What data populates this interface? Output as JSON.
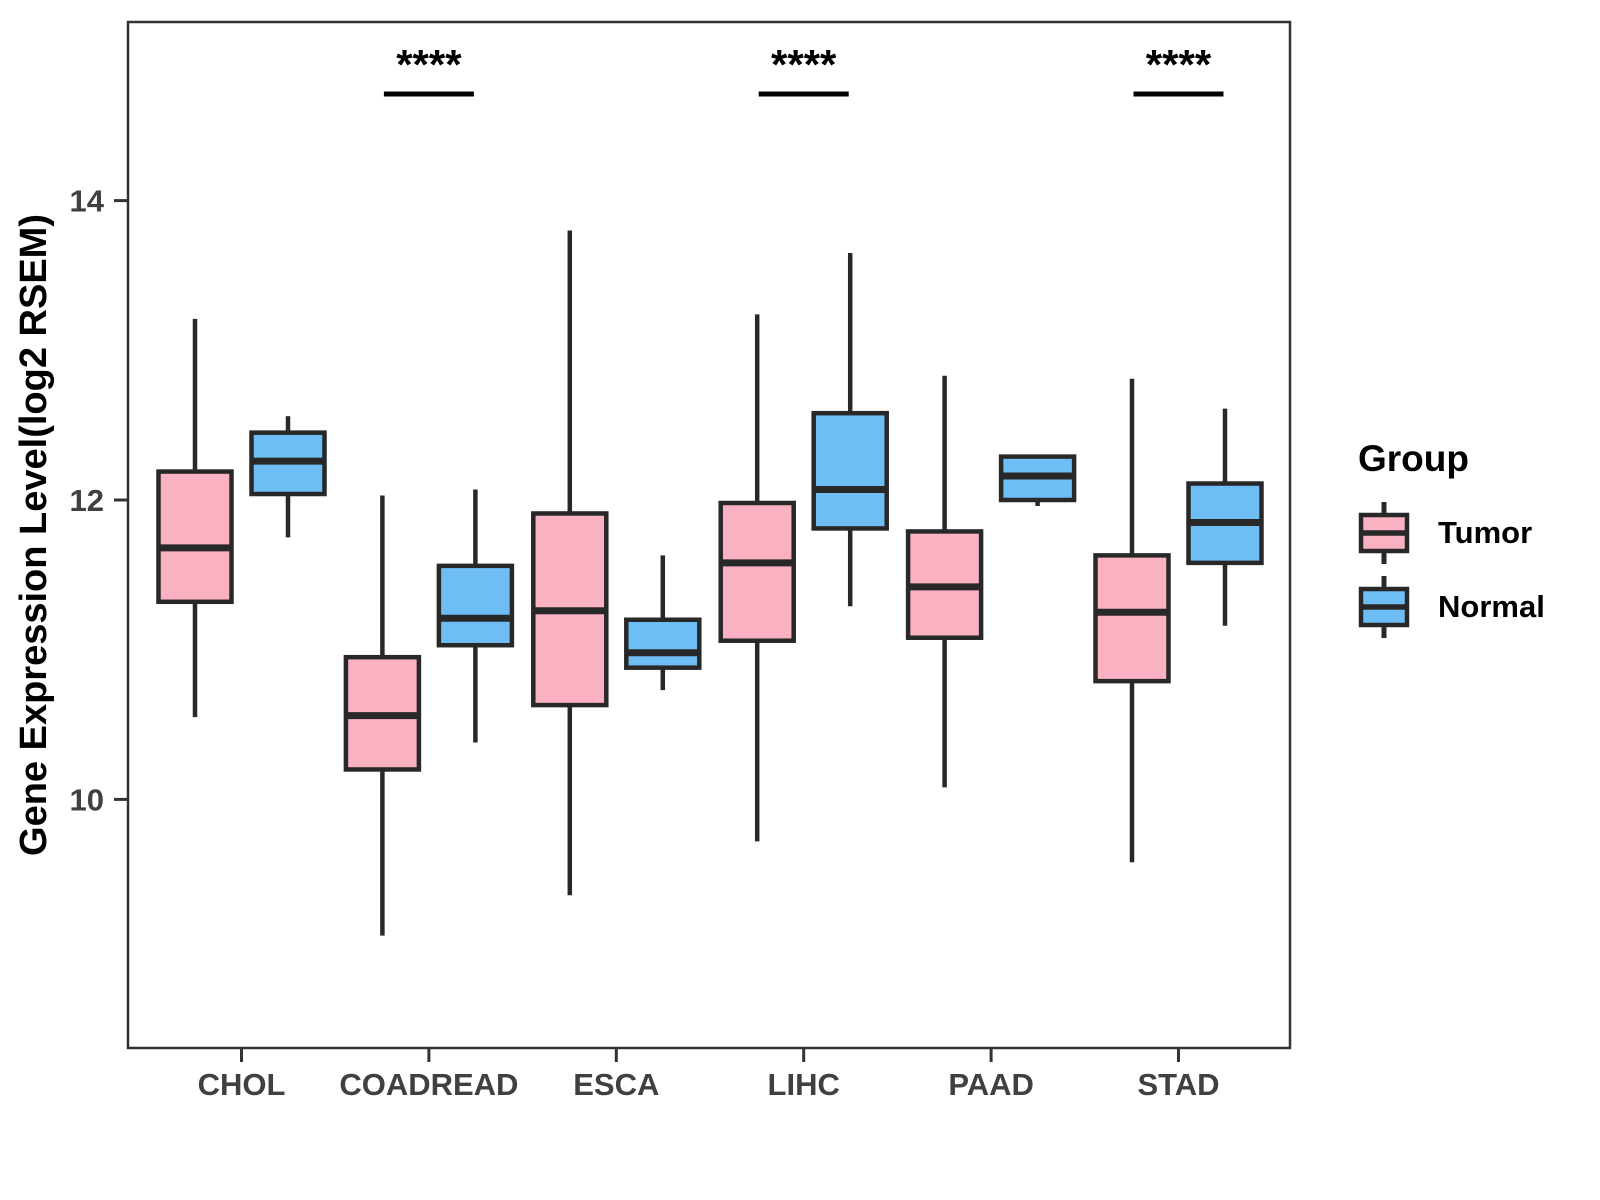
{
  "legend": {
    "title": "Group",
    "items": [
      {
        "label": "Tumor",
        "color": "#FAB1C1"
      },
      {
        "label": "Normal",
        "color": "#6EBEF5"
      }
    ]
  },
  "chart_data": {
    "type": "boxplot",
    "title": "",
    "xlabel": "",
    "ylabel": "Gene Expression Level(log2 RSEM)",
    "ylim": [
      8.3,
      15.2
    ],
    "y_ticks": [
      14,
      12,
      10
    ],
    "grid": false,
    "legend_position": "right",
    "categories": [
      "CHOL",
      "COADREAD",
      "ESCA",
      "LIHC",
      "PAAD",
      "STAD"
    ],
    "series": [
      {
        "name": "Tumor",
        "color": "#FAB1C1",
        "boxes": [
          {
            "low": 10.55,
            "q1": 11.32,
            "median": 11.68,
            "q3": 12.19,
            "high": 13.21
          },
          {
            "low": 9.09,
            "q1": 10.2,
            "median": 10.56,
            "q3": 10.95,
            "high": 12.03
          },
          {
            "low": 9.36,
            "q1": 10.63,
            "median": 11.26,
            "q3": 11.91,
            "high": 13.8
          },
          {
            "low": 9.72,
            "q1": 11.06,
            "median": 11.58,
            "q3": 11.98,
            "high": 13.24
          },
          {
            "low": 10.08,
            "q1": 11.08,
            "median": 11.42,
            "q3": 11.79,
            "high": 12.83
          },
          {
            "low": 9.58,
            "q1": 10.79,
            "median": 11.25,
            "q3": 11.63,
            "high": 12.81
          }
        ]
      },
      {
        "name": "Normal",
        "color": "#6EBEF5",
        "boxes": [
          {
            "low": 11.75,
            "q1": 12.04,
            "median": 12.26,
            "q3": 12.45,
            "high": 12.56
          },
          {
            "low": 10.38,
            "q1": 11.03,
            "median": 11.21,
            "q3": 11.56,
            "high": 12.07
          },
          {
            "low": 10.73,
            "q1": 10.88,
            "median": 10.98,
            "q3": 11.2,
            "high": 11.63
          },
          {
            "low": 11.29,
            "q1": 11.81,
            "median": 12.07,
            "q3": 12.58,
            "high": 13.65
          },
          {
            "low": 11.96,
            "q1": 12.0,
            "median": 12.16,
            "q3": 12.29,
            "high": 12.3
          },
          {
            "low": 11.16,
            "q1": 11.58,
            "median": 11.85,
            "q3": 12.11,
            "high": 12.61
          }
        ]
      }
    ],
    "significance": [
      {
        "category": "COADREAD",
        "label": "****"
      },
      {
        "category": "LIHC",
        "label": "****"
      },
      {
        "category": "STAD",
        "label": "****"
      }
    ]
  }
}
